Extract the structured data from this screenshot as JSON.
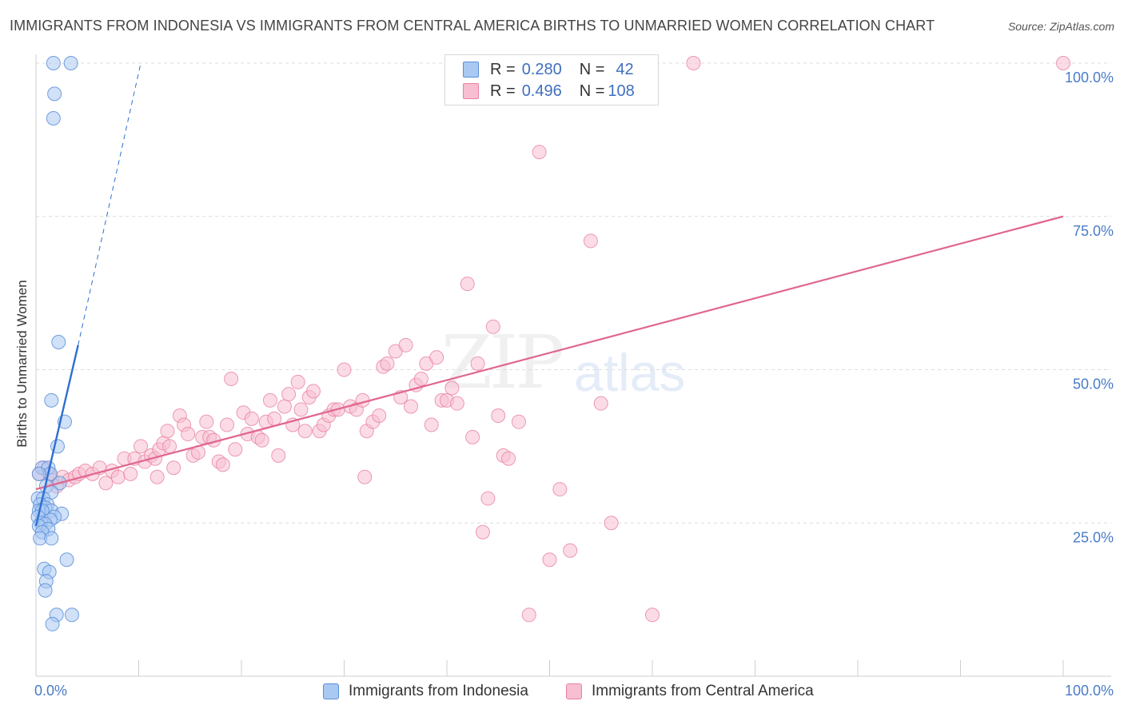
{
  "title": "IMMIGRANTS FROM INDONESIA VS IMMIGRANTS FROM CENTRAL AMERICA BIRTHS TO UNMARRIED WOMEN CORRELATION CHART",
  "source": "Source: ZipAtlas.com",
  "watermark": {
    "zip": "ZIP",
    "atlas": "atlas"
  },
  "legend": {
    "r_label": "R =",
    "n_label": "N =",
    "series": [
      {
        "r": "0.280",
        "n": "42"
      },
      {
        "r": "0.496",
        "n": "108"
      }
    ]
  },
  "bottom_legend": [
    "Immigrants from Indonesia",
    "Immigrants from Central America"
  ],
  "colors": {
    "blue_fill": "#a9c9f2",
    "blue_stroke": "#5b8fd8",
    "blue_line": "#2f6fd0",
    "pink_fill": "#f7bfd1",
    "pink_stroke": "#e9829f",
    "pink_line": "#e0668f",
    "tick": "#4a7cc6",
    "grid": "#dcdcdc"
  },
  "chart_data": {
    "type": "scatter",
    "title": "IMMIGRANTS FROM INDONESIA VS IMMIGRANTS FROM CENTRAL AMERICA BIRTHS TO UNMARRIED WOMEN CORRELATION CHART",
    "xlabel": "",
    "ylabel": "Births to Unmarried Women",
    "xlim": [
      0,
      100
    ],
    "ylim": [
      0,
      100
    ],
    "x_tick_labels": [
      "0.0%",
      "100.0%"
    ],
    "y_tick_labels": [
      "25.0%",
      "50.0%",
      "75.0%",
      "100.0%"
    ],
    "y_ticks": [
      25,
      50,
      75,
      100
    ],
    "series": [
      {
        "name": "Immigrants from Indonesia",
        "r": 0.28,
        "n": 42,
        "points": [
          [
            1.7,
            100
          ],
          [
            3.4,
            100
          ],
          [
            1.8,
            95
          ],
          [
            1.7,
            91
          ],
          [
            2.2,
            54.5
          ],
          [
            1.5,
            45
          ],
          [
            2.8,
            41.5
          ],
          [
            2.1,
            37.5
          ],
          [
            0.6,
            34
          ],
          [
            1.2,
            34
          ],
          [
            1.4,
            33
          ],
          [
            0.3,
            33
          ],
          [
            2.3,
            31.5
          ],
          [
            1.0,
            31
          ],
          [
            1.5,
            30
          ],
          [
            0.2,
            29
          ],
          [
            0.7,
            29
          ],
          [
            1.1,
            28
          ],
          [
            0.4,
            28
          ],
          [
            0.9,
            27.5
          ],
          [
            0.3,
            27
          ],
          [
            1.5,
            27
          ],
          [
            0.6,
            27
          ],
          [
            2.5,
            26.5
          ],
          [
            0.2,
            26
          ],
          [
            1.8,
            26
          ],
          [
            1.4,
            25.5
          ],
          [
            0.5,
            25
          ],
          [
            0.9,
            24.8
          ],
          [
            0.3,
            24.5
          ],
          [
            1.2,
            24
          ],
          [
            0.6,
            23.5
          ],
          [
            0.4,
            22.5
          ],
          [
            1.5,
            22.5
          ],
          [
            3.0,
            19
          ],
          [
            0.8,
            17.5
          ],
          [
            1.3,
            17
          ],
          [
            1.0,
            15.5
          ],
          [
            0.9,
            14
          ],
          [
            2.0,
            10
          ],
          [
            3.5,
            10
          ],
          [
            1.6,
            8.5
          ]
        ],
        "trend": {
          "x": [
            0,
            4.1
          ],
          "y": [
            24.5,
            54
          ]
        },
        "trend_ext": {
          "x": [
            4.1,
            10.2
          ],
          "y": [
            54,
            100
          ]
        }
      },
      {
        "name": "Immigrants from Central America",
        "r": 0.496,
        "n": 108,
        "points": [
          [
            0.3,
            33
          ],
          [
            0.8,
            34
          ],
          [
            1.3,
            33
          ],
          [
            1.6,
            32
          ],
          [
            2.0,
            31
          ],
          [
            2.6,
            32.5
          ],
          [
            3.2,
            32
          ],
          [
            3.8,
            32.5
          ],
          [
            4.2,
            33
          ],
          [
            4.8,
            33.5
          ],
          [
            5.5,
            33
          ],
          [
            6.2,
            34
          ],
          [
            6.8,
            31.5
          ],
          [
            7.4,
            33.5
          ],
          [
            8.0,
            32.5
          ],
          [
            8.6,
            35.5
          ],
          [
            9.2,
            33
          ],
          [
            9.6,
            35.5
          ],
          [
            10.2,
            37.5
          ],
          [
            10.6,
            35
          ],
          [
            11.2,
            36
          ],
          [
            11.6,
            35.5
          ],
          [
            11.8,
            32.5
          ],
          [
            12.0,
            37
          ],
          [
            12.4,
            38
          ],
          [
            12.8,
            40
          ],
          [
            13.0,
            37.5
          ],
          [
            13.4,
            34
          ],
          [
            14.0,
            42.5
          ],
          [
            14.4,
            41
          ],
          [
            14.8,
            39.5
          ],
          [
            15.3,
            36
          ],
          [
            15.8,
            36.5
          ],
          [
            16.2,
            39
          ],
          [
            16.6,
            41.5
          ],
          [
            16.9,
            39
          ],
          [
            17.3,
            38.5
          ],
          [
            17.8,
            35
          ],
          [
            18.2,
            34.5
          ],
          [
            18.6,
            41
          ],
          [
            19.0,
            48.5
          ],
          [
            19.4,
            37
          ],
          [
            20.2,
            43
          ],
          [
            20.6,
            39.5
          ],
          [
            21.0,
            42
          ],
          [
            21.6,
            39
          ],
          [
            22.0,
            38.5
          ],
          [
            22.4,
            41.5
          ],
          [
            22.8,
            45
          ],
          [
            23.2,
            42
          ],
          [
            23.6,
            36
          ],
          [
            24.2,
            44
          ],
          [
            24.6,
            46
          ],
          [
            25.0,
            41
          ],
          [
            25.5,
            48
          ],
          [
            25.8,
            43.5
          ],
          [
            26.2,
            40
          ],
          [
            26.6,
            45.5
          ],
          [
            27.0,
            46.5
          ],
          [
            27.6,
            40
          ],
          [
            28.0,
            41
          ],
          [
            28.5,
            42.5
          ],
          [
            29.0,
            43.5
          ],
          [
            29.4,
            43.5
          ],
          [
            30.0,
            50
          ],
          [
            30.6,
            44
          ],
          [
            31.2,
            43.5
          ],
          [
            31.8,
            45
          ],
          [
            32.2,
            40
          ],
          [
            32.8,
            41.5
          ],
          [
            33.4,
            42.5
          ],
          [
            33.8,
            50.5
          ],
          [
            34.2,
            51
          ],
          [
            35.0,
            53
          ],
          [
            35.5,
            45.5
          ],
          [
            36.0,
            54
          ],
          [
            36.5,
            44
          ],
          [
            37.0,
            47.5
          ],
          [
            37.5,
            48.5
          ],
          [
            38.0,
            51
          ],
          [
            38.5,
            41
          ],
          [
            39.0,
            52
          ],
          [
            39.5,
            45
          ],
          [
            40.0,
            45
          ],
          [
            40.5,
            47
          ],
          [
            41.0,
            44.5
          ],
          [
            42.0,
            64
          ],
          [
            42.5,
            39
          ],
          [
            43.0,
            51
          ],
          [
            43.5,
            23.5
          ],
          [
            44.0,
            29
          ],
          [
            44.5,
            57
          ],
          [
            45.0,
            42.5
          ],
          [
            45.5,
            36
          ],
          [
            46.0,
            35.5
          ],
          [
            47.0,
            41.5
          ],
          [
            48.0,
            10
          ],
          [
            49.0,
            85.5
          ],
          [
            50.0,
            19
          ],
          [
            51.0,
            30.5
          ],
          [
            52.0,
            20.5
          ],
          [
            54.0,
            71
          ],
          [
            55.0,
            44.5
          ],
          [
            56.0,
            25
          ],
          [
            60.0,
            10
          ],
          [
            64.0,
            100
          ],
          [
            100.0,
            100
          ],
          [
            32.0,
            32.5
          ]
        ],
        "trend": {
          "x": [
            0,
            100
          ],
          "y": [
            30.5,
            75
          ]
        }
      }
    ]
  }
}
